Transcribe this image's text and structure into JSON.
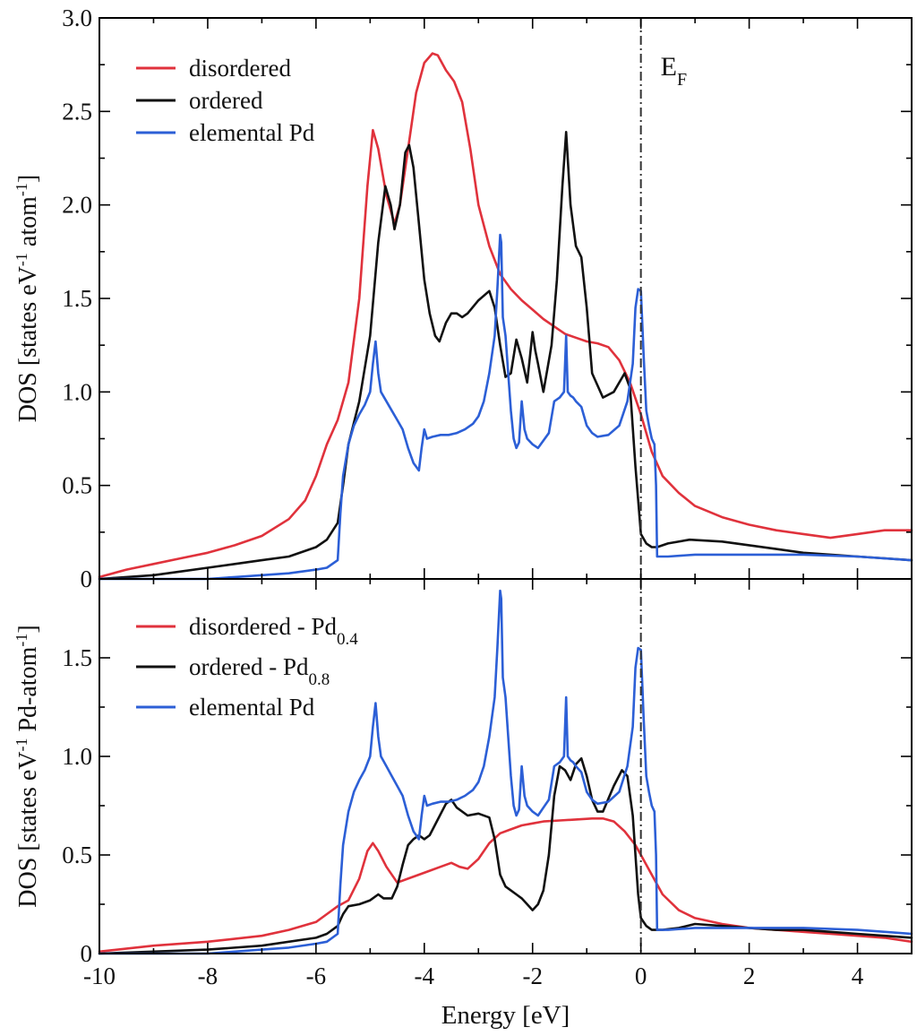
{
  "chart_data": [
    {
      "type": "line",
      "panel": "top",
      "ylabel": "DOS [states eV⁻¹ atom⁻¹]",
      "xlabel": "",
      "xlim": [
        -10,
        5
      ],
      "ylim": [
        0,
        3.0
      ],
      "yticks": [
        0,
        0.5,
        1.0,
        1.5,
        2.0,
        2.5,
        3.0
      ],
      "ytick_labels": [
        "0",
        "0.5",
        "1.0",
        "1.5",
        "2.0",
        "2.5",
        "3.0"
      ],
      "fermi_label": "EF",
      "legend": [
        "disordered",
        "ordered",
        "elemental Pd"
      ],
      "series": [
        {
          "name": "disordered",
          "color": "#e0323c",
          "x": [
            -10,
            -9.5,
            -9,
            -8.5,
            -8,
            -7.5,
            -7,
            -6.5,
            -6.2,
            -6,
            -5.8,
            -5.6,
            -5.4,
            -5.2,
            -5.05,
            -4.95,
            -4.85,
            -4.7,
            -4.55,
            -4.45,
            -4.3,
            -4.15,
            -4.0,
            -3.85,
            -3.75,
            -3.6,
            -3.45,
            -3.3,
            -3.15,
            -3.0,
            -2.8,
            -2.6,
            -2.4,
            -2.2,
            -2.0,
            -1.8,
            -1.6,
            -1.4,
            -1.2,
            -1.0,
            -0.8,
            -0.6,
            -0.4,
            -0.2,
            0,
            0.2,
            0.4,
            0.7,
            1.0,
            1.5,
            2.0,
            2.5,
            3.0,
            3.5,
            4.0,
            4.5,
            5.0
          ],
          "y": [
            0.01,
            0.05,
            0.08,
            0.11,
            0.14,
            0.18,
            0.23,
            0.32,
            0.42,
            0.55,
            0.72,
            0.85,
            1.05,
            1.5,
            2.1,
            2.4,
            2.3,
            2.05,
            1.9,
            2.0,
            2.3,
            2.6,
            2.76,
            2.81,
            2.8,
            2.72,
            2.66,
            2.55,
            2.3,
            2.0,
            1.78,
            1.63,
            1.55,
            1.49,
            1.44,
            1.39,
            1.35,
            1.31,
            1.29,
            1.27,
            1.26,
            1.24,
            1.17,
            1.05,
            0.88,
            0.68,
            0.55,
            0.46,
            0.39,
            0.33,
            0.29,
            0.26,
            0.24,
            0.22,
            0.24,
            0.26,
            0.26
          ]
        },
        {
          "name": "ordered",
          "color": "#111111",
          "x": [
            -10,
            -9.5,
            -9,
            -8.5,
            -8,
            -7.5,
            -7,
            -6.5,
            -6,
            -5.8,
            -5.6,
            -5.5,
            -5.4,
            -5.2,
            -5.0,
            -4.85,
            -4.72,
            -4.62,
            -4.55,
            -4.45,
            -4.35,
            -4.28,
            -4.2,
            -4.1,
            -4.0,
            -3.9,
            -3.8,
            -3.72,
            -3.6,
            -3.5,
            -3.4,
            -3.3,
            -3.2,
            -3.0,
            -2.8,
            -2.7,
            -2.6,
            -2.5,
            -2.4,
            -2.3,
            -2.2,
            -2.1,
            -2.0,
            -1.95,
            -1.9,
            -1.8,
            -1.65,
            -1.55,
            -1.45,
            -1.38,
            -1.3,
            -1.2,
            -1.1,
            -1.0,
            -0.9,
            -0.7,
            -0.5,
            -0.3,
            -0.2,
            -0.1,
            0,
            0.1,
            0.2,
            0.3,
            0.5,
            0.9,
            1.5,
            2.0,
            2.5,
            3.0,
            3.5,
            4.0,
            4.5,
            5.0
          ],
          "y": [
            0.0,
            0.01,
            0.02,
            0.04,
            0.06,
            0.08,
            0.1,
            0.12,
            0.17,
            0.21,
            0.3,
            0.5,
            0.72,
            0.95,
            1.3,
            1.8,
            2.1,
            2.0,
            1.87,
            2.0,
            2.28,
            2.32,
            2.2,
            1.9,
            1.6,
            1.42,
            1.3,
            1.27,
            1.37,
            1.42,
            1.42,
            1.4,
            1.42,
            1.49,
            1.54,
            1.45,
            1.25,
            1.08,
            1.1,
            1.28,
            1.18,
            1.05,
            1.32,
            1.22,
            1.15,
            1.0,
            1.25,
            1.6,
            2.1,
            2.39,
            2.0,
            1.78,
            1.72,
            1.45,
            1.1,
            0.97,
            1.0,
            1.1,
            1.02,
            0.6,
            0.24,
            0.19,
            0.17,
            0.17,
            0.19,
            0.21,
            0.2,
            0.18,
            0.16,
            0.14,
            0.13,
            0.12,
            0.11,
            0.1
          ]
        },
        {
          "name": "elemental Pd",
          "color": "#2c5fd6",
          "x": [
            -10,
            -9,
            -8.5,
            -8,
            -7.5,
            -7,
            -6.5,
            -6,
            -5.8,
            -5.6,
            -5.55,
            -5.5,
            -5.4,
            -5.3,
            -5.2,
            -5.1,
            -5.0,
            -4.95,
            -4.9,
            -4.85,
            -4.8,
            -4.7,
            -4.6,
            -4.5,
            -4.4,
            -4.3,
            -4.2,
            -4.1,
            -4.05,
            -4.0,
            -3.95,
            -3.85,
            -3.7,
            -3.55,
            -3.4,
            -3.25,
            -3.1,
            -3.0,
            -2.9,
            -2.8,
            -2.7,
            -2.65,
            -2.6,
            -2.58,
            -2.55,
            -2.5,
            -2.45,
            -2.4,
            -2.35,
            -2.3,
            -2.25,
            -2.2,
            -2.15,
            -2.1,
            -2.0,
            -1.9,
            -1.8,
            -1.7,
            -1.6,
            -1.5,
            -1.42,
            -1.38,
            -1.35,
            -1.3,
            -1.25,
            -1.2,
            -1.1,
            -1.0,
            -0.9,
            -0.8,
            -0.6,
            -0.4,
            -0.25,
            -0.15,
            -0.1,
            -0.05,
            0,
            0.05,
            0.1,
            0.15,
            0.2,
            0.25,
            0.28,
            0.3,
            0.35,
            0.5,
            1.0,
            2.0,
            3.0,
            4.0,
            5.0
          ],
          "y": [
            0,
            0,
            0,
            0,
            0.01,
            0.02,
            0.03,
            0.05,
            0.06,
            0.1,
            0.35,
            0.55,
            0.72,
            0.82,
            0.88,
            0.93,
            1.0,
            1.15,
            1.27,
            1.1,
            1.0,
            0.95,
            0.9,
            0.85,
            0.8,
            0.7,
            0.62,
            0.58,
            0.7,
            0.8,
            0.75,
            0.76,
            0.77,
            0.77,
            0.78,
            0.8,
            0.83,
            0.87,
            0.95,
            1.1,
            1.3,
            1.55,
            1.84,
            1.8,
            1.4,
            1.3,
            1.1,
            0.9,
            0.75,
            0.7,
            0.73,
            0.95,
            0.8,
            0.75,
            0.72,
            0.7,
            0.74,
            0.78,
            0.95,
            0.97,
            1.0,
            1.3,
            1.0,
            0.98,
            0.97,
            0.95,
            0.92,
            0.82,
            0.78,
            0.76,
            0.77,
            0.82,
            0.95,
            1.15,
            1.45,
            1.55,
            1.54,
            1.2,
            0.9,
            0.82,
            0.75,
            0.72,
            0.5,
            0.12,
            0.12,
            0.12,
            0.13,
            0.13,
            0.13,
            0.12,
            0.1
          ]
        }
      ]
    },
    {
      "type": "line",
      "panel": "bottom",
      "ylabel": "DOS [states eV⁻¹ Pd-atom⁻¹]",
      "xlabel": "Energy [eV]",
      "xlim": [
        -10,
        5
      ],
      "ylim": [
        0,
        1.9
      ],
      "yticks": [
        0,
        0.5,
        1.0,
        1.5
      ],
      "ytick_labels": [
        "0",
        "0.5",
        "1.0",
        "1.5"
      ],
      "xticks": [
        -10,
        -8,
        -6,
        -4,
        -2,
        0,
        2,
        4
      ],
      "xtick_labels": [
        "-10",
        "-8",
        "-6",
        "-4",
        "-2",
        "0",
        "2",
        "4"
      ],
      "legend": [
        {
          "text": "disordered - Pd",
          "sub": "0.4"
        },
        {
          "text": "ordered - Pd",
          "sub": "0.8"
        },
        {
          "text": "elemental Pd",
          "sub": ""
        }
      ],
      "series": [
        {
          "name": "disordered - Pd0.4",
          "color": "#e0323c",
          "x": [
            -10,
            -9,
            -8,
            -7,
            -6.5,
            -6,
            -5.8,
            -5.6,
            -5.4,
            -5.2,
            -5.05,
            -4.95,
            -4.85,
            -4.7,
            -4.5,
            -4.3,
            -4.1,
            -3.9,
            -3.7,
            -3.5,
            -3.35,
            -3.2,
            -3.0,
            -2.8,
            -2.6,
            -2.4,
            -2.2,
            -2.0,
            -1.8,
            -1.5,
            -1.2,
            -0.9,
            -0.7,
            -0.5,
            -0.3,
            -0.1,
            0,
            0.2,
            0.4,
            0.7,
            1.0,
            1.5,
            2.0,
            2.5,
            3.0,
            3.5,
            4.0,
            4.5,
            5.0
          ],
          "y": [
            0.01,
            0.04,
            0.06,
            0.09,
            0.12,
            0.16,
            0.2,
            0.24,
            0.27,
            0.38,
            0.52,
            0.56,
            0.52,
            0.44,
            0.36,
            0.38,
            0.4,
            0.42,
            0.44,
            0.46,
            0.44,
            0.43,
            0.48,
            0.56,
            0.61,
            0.63,
            0.65,
            0.66,
            0.67,
            0.675,
            0.68,
            0.685,
            0.685,
            0.67,
            0.62,
            0.55,
            0.5,
            0.4,
            0.3,
            0.22,
            0.18,
            0.15,
            0.13,
            0.12,
            0.11,
            0.1,
            0.09,
            0.08,
            0.06
          ]
        },
        {
          "name": "ordered - Pd0.8",
          "color": "#111111",
          "x": [
            -10,
            -9,
            -8,
            -7,
            -6,
            -5.8,
            -5.6,
            -5.5,
            -5.4,
            -5.2,
            -5.0,
            -4.85,
            -4.75,
            -4.6,
            -4.5,
            -4.4,
            -4.3,
            -4.2,
            -4.1,
            -4.0,
            -3.9,
            -3.75,
            -3.6,
            -3.5,
            -3.4,
            -3.2,
            -3.0,
            -2.8,
            -2.7,
            -2.6,
            -2.5,
            -2.4,
            -2.3,
            -2.2,
            -2.1,
            -2.0,
            -1.9,
            -1.8,
            -1.7,
            -1.6,
            -1.5,
            -1.4,
            -1.3,
            -1.2,
            -1.1,
            -1.0,
            -0.9,
            -0.8,
            -0.7,
            -0.5,
            -0.35,
            -0.25,
            -0.15,
            -0.05,
            0,
            0.1,
            0.2,
            0.4,
            0.7,
            1.0,
            1.5,
            2.0,
            2.5,
            3.0,
            3.5,
            4.0,
            4.5,
            5.0
          ],
          "y": [
            0.0,
            0.01,
            0.02,
            0.04,
            0.08,
            0.1,
            0.14,
            0.2,
            0.24,
            0.25,
            0.27,
            0.3,
            0.28,
            0.28,
            0.34,
            0.45,
            0.55,
            0.58,
            0.6,
            0.58,
            0.6,
            0.68,
            0.76,
            0.78,
            0.74,
            0.7,
            0.71,
            0.69,
            0.58,
            0.4,
            0.34,
            0.32,
            0.3,
            0.28,
            0.25,
            0.22,
            0.25,
            0.32,
            0.5,
            0.8,
            0.95,
            0.93,
            0.88,
            0.96,
            0.99,
            0.9,
            0.78,
            0.72,
            0.72,
            0.85,
            0.93,
            0.9,
            0.7,
            0.3,
            0.18,
            0.14,
            0.12,
            0.12,
            0.13,
            0.15,
            0.14,
            0.13,
            0.12,
            0.12,
            0.11,
            0.1,
            0.09,
            0.08
          ]
        },
        {
          "name": "elemental Pd",
          "color": "#2c5fd6",
          "x": [
            -10,
            -9,
            -8.5,
            -8,
            -7.5,
            -7,
            -6.5,
            -6,
            -5.8,
            -5.6,
            -5.55,
            -5.5,
            -5.4,
            -5.3,
            -5.2,
            -5.1,
            -5.0,
            -4.95,
            -4.9,
            -4.85,
            -4.8,
            -4.7,
            -4.6,
            -4.5,
            -4.4,
            -4.3,
            -4.2,
            -4.1,
            -4.05,
            -4.0,
            -3.95,
            -3.85,
            -3.7,
            -3.55,
            -3.4,
            -3.25,
            -3.1,
            -3.0,
            -2.9,
            -2.8,
            -2.7,
            -2.65,
            -2.6,
            -2.58,
            -2.55,
            -2.5,
            -2.45,
            -2.4,
            -2.35,
            -2.3,
            -2.25,
            -2.2,
            -2.15,
            -2.1,
            -2.0,
            -1.9,
            -1.8,
            -1.7,
            -1.6,
            -1.5,
            -1.42,
            -1.38,
            -1.35,
            -1.3,
            -1.25,
            -1.2,
            -1.1,
            -1.0,
            -0.9,
            -0.8,
            -0.6,
            -0.4,
            -0.25,
            -0.15,
            -0.1,
            -0.05,
            0,
            0.05,
            0.1,
            0.15,
            0.2,
            0.25,
            0.28,
            0.3,
            0.35,
            0.5,
            1.0,
            2.0,
            3.0,
            4.0,
            5.0
          ],
          "y": [
            0,
            0,
            0,
            0,
            0.01,
            0.02,
            0.03,
            0.05,
            0.06,
            0.1,
            0.35,
            0.55,
            0.72,
            0.82,
            0.88,
            0.93,
            1.0,
            1.15,
            1.27,
            1.1,
            1.0,
            0.95,
            0.9,
            0.85,
            0.8,
            0.7,
            0.62,
            0.58,
            0.7,
            0.8,
            0.75,
            0.76,
            0.77,
            0.77,
            0.78,
            0.8,
            0.83,
            0.87,
            0.95,
            1.1,
            1.3,
            1.55,
            1.84,
            1.8,
            1.4,
            1.3,
            1.1,
            0.9,
            0.75,
            0.7,
            0.73,
            0.95,
            0.8,
            0.75,
            0.72,
            0.7,
            0.74,
            0.78,
            0.95,
            0.97,
            1.0,
            1.3,
            1.0,
            0.98,
            0.97,
            0.95,
            0.92,
            0.82,
            0.78,
            0.76,
            0.77,
            0.82,
            0.95,
            1.15,
            1.45,
            1.55,
            1.54,
            1.2,
            0.9,
            0.82,
            0.75,
            0.72,
            0.5,
            0.12,
            0.12,
            0.12,
            0.13,
            0.13,
            0.13,
            0.12,
            0.1
          ]
        }
      ]
    }
  ]
}
